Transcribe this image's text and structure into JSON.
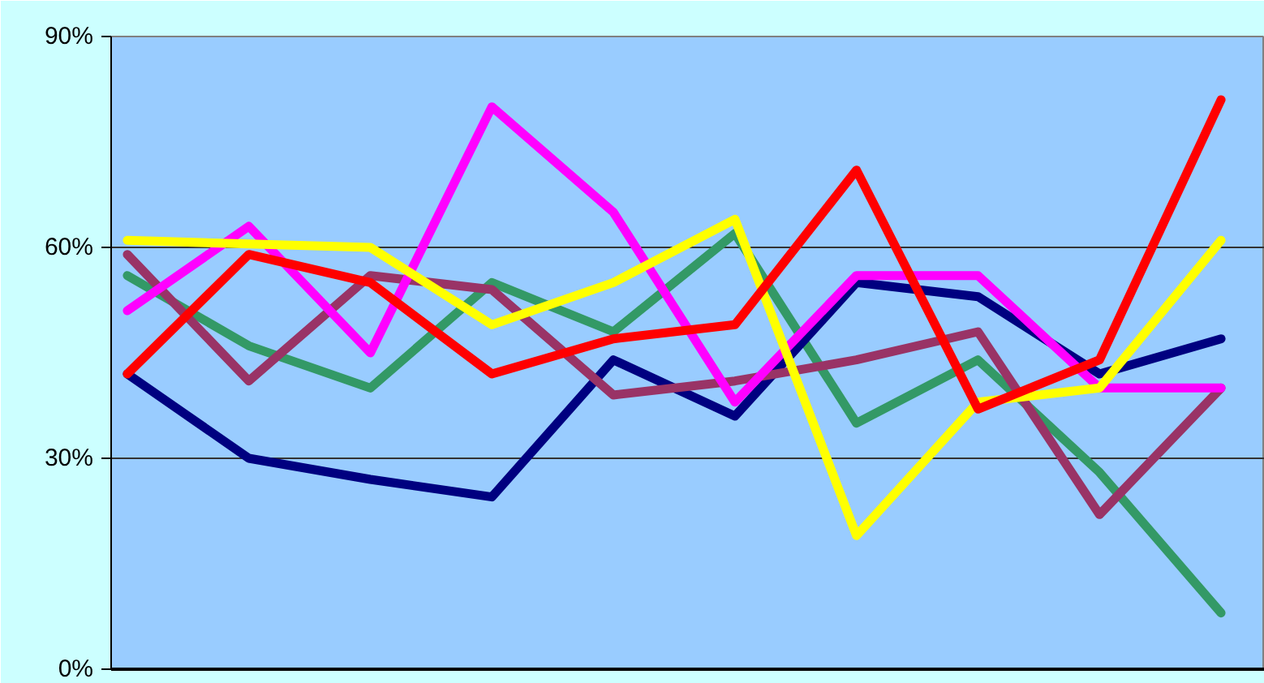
{
  "chart_data": {
    "type": "line",
    "categories": [
      null,
      null,
      null,
      null,
      null,
      null,
      null,
      null,
      null,
      null
    ],
    "ylim": [
      0,
      90
    ],
    "yticks": [
      {
        "value": 0,
        "label": "0%"
      },
      {
        "value": 30,
        "label": "30%"
      },
      {
        "value": 60,
        "label": "60%"
      },
      {
        "value": 90,
        "label": "90%"
      }
    ],
    "grid": "y",
    "tick_labels": "y",
    "marker": "none",
    "line_style": "solid",
    "series": [
      {
        "color": "#339966",
        "values": [
          56,
          46,
          40,
          55,
          48,
          62,
          35,
          44,
          28,
          8
        ]
      },
      {
        "color": "#000080",
        "values": [
          42,
          30,
          27,
          24.5,
          44,
          36,
          55,
          53,
          42,
          47
        ]
      },
      {
        "color": "#993366",
        "values": [
          59,
          41,
          56,
          54,
          39,
          41,
          44,
          48,
          22,
          40
        ]
      },
      {
        "color": "#ff00ff",
        "values": [
          51,
          63,
          45,
          80,
          65,
          38,
          56,
          56,
          40,
          40
        ]
      },
      {
        "color": "#ffff00",
        "values": [
          61,
          60.5,
          60,
          49,
          55,
          64,
          19,
          38,
          40,
          61
        ]
      },
      {
        "color": "#ff0000",
        "values": [
          42,
          59,
          55,
          42,
          47,
          49,
          71,
          37,
          44,
          81
        ]
      }
    ]
  }
}
